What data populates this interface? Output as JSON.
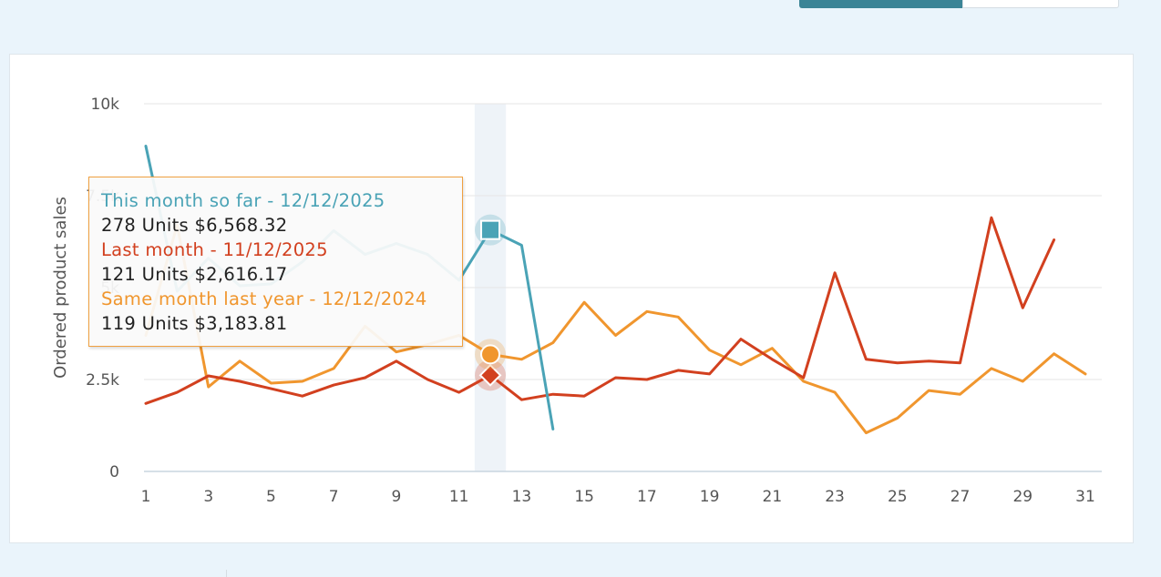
{
  "colors": {
    "this_month": "#4aa3b6",
    "last_month": "#d2401f",
    "same_month_last_year": "#f0962e",
    "highlight_band": "#eef3f8",
    "tooltip_border": "#f0a040"
  },
  "tooltip": {
    "this_title": "This month so far - 12/12/2025",
    "this_value": "278 Units $6,568.32",
    "last_title": "Last month - 11/12/2025",
    "last_value": "121 Units $2,616.17",
    "same_title": "Same month last year - 12/12/2024",
    "same_value": "119 Units $3,183.81"
  },
  "chart_data": {
    "type": "line",
    "ylabel": "Ordered product sales",
    "xlabel": "",
    "ylim": [
      0,
      10000
    ],
    "y_ticks": [
      {
        "value": 0,
        "label": "0"
      },
      {
        "value": 2500,
        "label": "2.5k"
      },
      {
        "value": 5000,
        "label": "5k"
      },
      {
        "value": 7500,
        "label": "7.5k"
      },
      {
        "value": 10000,
        "label": "10k"
      }
    ],
    "x_ticks": [
      1,
      3,
      5,
      7,
      9,
      11,
      13,
      15,
      17,
      19,
      21,
      23,
      25,
      27,
      29,
      31
    ],
    "xlim": [
      1,
      31
    ],
    "highlight_day": 12,
    "grid": true,
    "series": [
      {
        "key": "this_month",
        "marker": "square",
        "x": [
          1,
          2,
          3,
          4,
          5,
          6,
          7,
          8,
          9,
          10,
          11,
          12,
          13,
          14
        ],
        "values": [
          8850,
          4900,
          5800,
          5050,
          5100,
          5700,
          6550,
          5900,
          6200,
          5900,
          5200,
          6568,
          6150,
          1150
        ]
      },
      {
        "key": "last_month",
        "marker": "diamond",
        "x": [
          1,
          2,
          3,
          4,
          5,
          6,
          7,
          8,
          9,
          10,
          11,
          12,
          13,
          14,
          15,
          16,
          17,
          18,
          19,
          20,
          21,
          22,
          23,
          24,
          25,
          26,
          27,
          28,
          29,
          30
        ],
        "values": [
          1850,
          2150,
          2600,
          2450,
          2250,
          2050,
          2350,
          2550,
          3000,
          2500,
          2150,
          2616,
          1950,
          2100,
          2050,
          2550,
          2500,
          2750,
          2650,
          3600,
          3050,
          2550,
          5400,
          3050,
          2950,
          3000,
          2950,
          6900,
          4450,
          6300
        ]
      },
      {
        "key": "same_month_last_year",
        "marker": "circle",
        "x": [
          1,
          2,
          3,
          4,
          5,
          6,
          7,
          8,
          9,
          10,
          11,
          12,
          13,
          14,
          15,
          16,
          17,
          18,
          19,
          20,
          21,
          22,
          23,
          24,
          25,
          26,
          27,
          28,
          29,
          30,
          31
        ],
        "values": [
          3700,
          6700,
          2300,
          3000,
          2400,
          2450,
          2800,
          3950,
          3250,
          3450,
          3700,
          3184,
          3050,
          3500,
          4600,
          3700,
          4350,
          4200,
          3300,
          2900,
          3350,
          2450,
          2150,
          1050,
          1450,
          2200,
          2100,
          2800,
          2450,
          3200,
          2650
        ]
      }
    ]
  }
}
